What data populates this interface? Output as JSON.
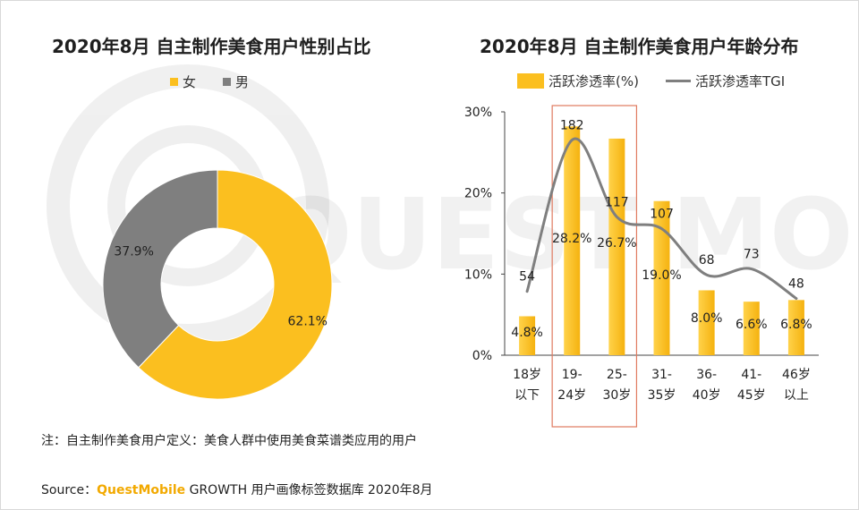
{
  "colors": {
    "female": "#fbbf1f",
    "male": "#7f7f7f",
    "bar": "#fbbf1f",
    "line": "#7f7f7f",
    "highlight": "#e07a5f",
    "brand": "#f2a900"
  },
  "watermark": "QUEST MOBILE",
  "pie": {
    "title": "2020年8月 自主制作美食用户性别占比",
    "legend": [
      {
        "label": "女",
        "color": "#fbbf1f"
      },
      {
        "label": "男",
        "color": "#7f7f7f"
      }
    ]
  },
  "bar": {
    "title": "2020年8月 自主制作美食用户年龄分布",
    "legend": {
      "bar_label": "活跃渗透率(%)",
      "line_label": "活跃渗透率TGI"
    }
  },
  "note": "注：自主制作美食用户定义：美食人群中使用美食菜谱类应用的用户",
  "source": {
    "prefix": "Source：",
    "brand": "QuestMobile",
    "suffix": " GROWTH 用户画像标签数据库 2020年8月"
  },
  "chart_data": [
    {
      "type": "pie",
      "donut": true,
      "title": "2020年8月 自主制作美食用户性别占比",
      "categories": [
        "女",
        "男"
      ],
      "values": [
        62.1,
        37.9
      ],
      "value_labels": [
        "62.1%",
        "37.9%"
      ],
      "legend": "top"
    },
    {
      "type": "bar",
      "title": "2020年8月 自主制作美食用户年龄分布",
      "categories": [
        [
          "18岁",
          "以下"
        ],
        [
          "19-",
          "24岁"
        ],
        [
          "25-",
          "30岁"
        ],
        [
          "31-",
          "35岁"
        ],
        [
          "36-",
          "40岁"
        ],
        [
          "41-",
          "45岁"
        ],
        [
          "46岁",
          "以上"
        ]
      ],
      "series": [
        {
          "name": "活跃渗透率(%)",
          "kind": "bar",
          "values": [
            4.8,
            28.2,
            26.7,
            19.0,
            8.0,
            6.6,
            6.8
          ],
          "labels": [
            "4.8%",
            "28.2%",
            "26.7%",
            "19.0%",
            "8.0%",
            "6.6%",
            "6.8%"
          ]
        },
        {
          "name": "活跃渗透率TGI",
          "kind": "line",
          "values": [
            54,
            182,
            117,
            107,
            68,
            73,
            48
          ],
          "labels": [
            "54",
            "182",
            "117",
            "107",
            "68",
            "73",
            "48"
          ]
        }
      ],
      "yticks": [
        "0%",
        "10%",
        "20%",
        "30%"
      ],
      "ylim": [
        0,
        30
      ],
      "highlight_categories": [
        1,
        2
      ],
      "grid": false,
      "legend": "top"
    }
  ]
}
